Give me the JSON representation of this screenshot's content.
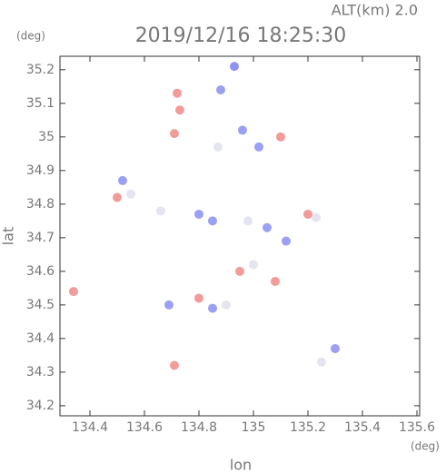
{
  "chart_data": {
    "type": "scatter",
    "title": "2019/12/16 18:25:30",
    "subtitle": "ALT(km) 2.0",
    "x_label": "lon",
    "y_label": "lat",
    "x_unit": "(deg)",
    "y_unit": "(deg)",
    "xlim": [
      134.29,
      135.61
    ],
    "ylim": [
      34.17,
      35.24
    ],
    "xticks": [
      134.4,
      134.6,
      134.8,
      135.0,
      135.2,
      135.4,
      135.6
    ],
    "yticks": [
      34.2,
      34.3,
      34.4,
      34.5,
      34.6,
      34.7,
      34.8,
      34.9,
      35.0,
      35.1,
      35.2
    ],
    "x": [
      134.93,
      134.88,
      134.72,
      134.73,
      134.71,
      134.96,
      134.87,
      135.02,
      135.1,
      134.52,
      134.5,
      134.66,
      134.8,
      134.85,
      134.98,
      135.05,
      135.2,
      135.23,
      135.12,
      135.0,
      134.95,
      135.08,
      134.8,
      134.85,
      134.9,
      134.34,
      134.69,
      135.3,
      135.25,
      134.71,
      134.55
    ],
    "y": [
      35.21,
      35.14,
      35.13,
      35.08,
      35.01,
      35.02,
      34.97,
      34.97,
      35.0,
      34.87,
      34.82,
      34.78,
      34.77,
      34.75,
      34.75,
      34.73,
      34.77,
      34.76,
      34.69,
      34.62,
      34.6,
      34.57,
      34.52,
      34.49,
      34.5,
      34.54,
      34.5,
      34.37,
      34.33,
      34.32,
      34.83
    ],
    "colors": [
      "#7a80f0",
      "#8a8ff0",
      "#f08a8a",
      "#f08a8a",
      "#f08a8a",
      "#8a8ff0",
      "#e0e0f0",
      "#8a8ff0",
      "#f08a8a",
      "#8a8ff0",
      "#f08a8a",
      "#e0e0f0",
      "#8a8ff0",
      "#8a8ff0",
      "#e0e0f0",
      "#8a8ff0",
      "#f08a8a",
      "#e0e0f0",
      "#8a8ff0",
      "#e0e0f0",
      "#f08a8a",
      "#f08a8a",
      "#f08a8a",
      "#8a8ff0",
      "#e0e0f0",
      "#f08a8a",
      "#8a8ff0",
      "#8a8ff0",
      "#e0e0f0",
      "#f08a8a",
      "#e0e0f0"
    ]
  }
}
